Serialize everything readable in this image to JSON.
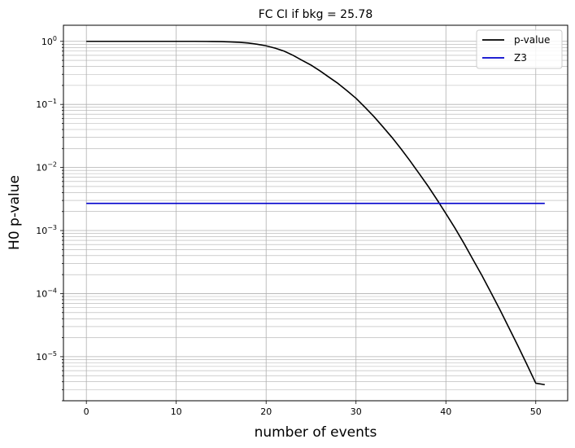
{
  "chart_data": {
    "type": "line",
    "title": "FC CI if bkg = 25.78",
    "xlabel": "number of events",
    "ylabel": "H0 p-value",
    "xlim": [
      -2.55,
      53.55
    ],
    "ylim": [
      2e-06,
      1.8
    ],
    "yscale": "log",
    "grid": true,
    "grid_color": "#b0b0b0",
    "legend_position": "top-right",
    "x_ticks": [
      {
        "value": 0,
        "label": "0"
      },
      {
        "value": 10,
        "label": "10"
      },
      {
        "value": 20,
        "label": "20"
      },
      {
        "value": 30,
        "label": "30"
      },
      {
        "value": 40,
        "label": "40"
      },
      {
        "value": 50,
        "label": "50"
      }
    ],
    "y_ticks": [
      {
        "value": 1e-05,
        "base": "10",
        "exp": "−5"
      },
      {
        "value": 0.0001,
        "base": "10",
        "exp": "−4"
      },
      {
        "value": 0.001,
        "base": "10",
        "exp": "−3"
      },
      {
        "value": 0.01,
        "base": "10",
        "exp": "−2"
      },
      {
        "value": 0.1,
        "base": "10",
        "exp": "−1"
      },
      {
        "value": 1,
        "base": "10",
        "exp": "0"
      }
    ],
    "series": [
      {
        "name": "p-value",
        "color": "#000000",
        "x": [
          0,
          2,
          4,
          6,
          8,
          10,
          12,
          14,
          15,
          16,
          17,
          18,
          19,
          20,
          21,
          22,
          23,
          24,
          25,
          26,
          27,
          28,
          29,
          30,
          31,
          32,
          33,
          34,
          35,
          36,
          37,
          38,
          39,
          40,
          41,
          42,
          43,
          44,
          45,
          46,
          47,
          48,
          49,
          50,
          51
        ],
        "y": [
          1,
          1,
          1,
          1,
          1,
          1,
          1,
          0.995,
          0.99,
          0.98,
          0.965,
          0.94,
          0.9,
          0.85,
          0.78,
          0.7,
          0.6,
          0.5,
          0.42,
          0.34,
          0.27,
          0.215,
          0.165,
          0.125,
          0.09,
          0.064,
          0.044,
          0.03,
          0.0198,
          0.0128,
          0.0081,
          0.0051,
          0.0031,
          0.00186,
          0.0011,
          0.00063,
          0.00035,
          0.000195,
          0.000105,
          5.6e-05,
          2.9e-05,
          1.5e-05,
          7.6e-06,
          3.8e-06,
          3.6e-06
        ]
      },
      {
        "name": "Z3",
        "color": "#0000cc",
        "x": [
          0,
          51
        ],
        "y": [
          0.0027,
          0.0027
        ]
      }
    ]
  }
}
